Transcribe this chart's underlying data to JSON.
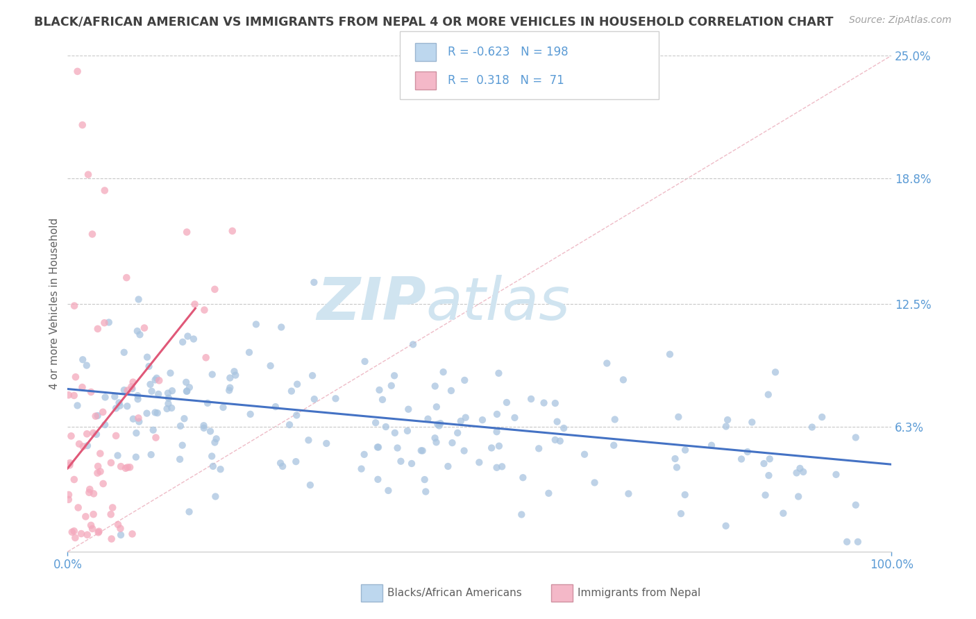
{
  "title": "BLACK/AFRICAN AMERICAN VS IMMIGRANTS FROM NEPAL 4 OR MORE VEHICLES IN HOUSEHOLD CORRELATION CHART",
  "source": "Source: ZipAtlas.com",
  "ylabel": "4 or more Vehicles in Household",
  "legend_labels": [
    "Blacks/African Americans",
    "Immigrants from Nepal"
  ],
  "r_blue": -0.623,
  "n_blue": 198,
  "r_pink": 0.318,
  "n_pink": 71,
  "xlim": [
    0.0,
    100.0
  ],
  "ylim": [
    0.0,
    25.0
  ],
  "ytick_positions": [
    6.3,
    12.5,
    18.8,
    25.0
  ],
  "ytick_labels": [
    "6.3%",
    "12.5%",
    "18.8%",
    "25.0%"
  ],
  "xtick_positions": [
    0,
    100
  ],
  "xtick_labels": [
    "0.0%",
    "100.0%"
  ],
  "blue_dot_color": "#a8c4e0",
  "pink_dot_color": "#f4a8bc",
  "blue_line_color": "#4472c4",
  "pink_line_color": "#e05878",
  "diag_line_color": "#e8a0b0",
  "title_color": "#404040",
  "axis_tick_color": "#5b9bd5",
  "legend_text_color": "#5b9bd5",
  "r_value_color": "#e05878",
  "watermark_zip": "ZIP",
  "watermark_atlas": "atlas",
  "watermark_color": "#d0e4f0",
  "background_color": "#ffffff",
  "grid_color": "#c8c8c8",
  "source_color": "#a0a0a0",
  "ylabel_color": "#606060",
  "blue_intercept": 8.2,
  "blue_slope": -0.038,
  "pink_intercept": 4.2,
  "pink_slope": 0.52,
  "pink_line_xmax": 15.5,
  "diag_x_start": 0,
  "diag_x_end": 100,
  "diag_y_start": 0,
  "diag_y_end": 25,
  "seed": 123
}
